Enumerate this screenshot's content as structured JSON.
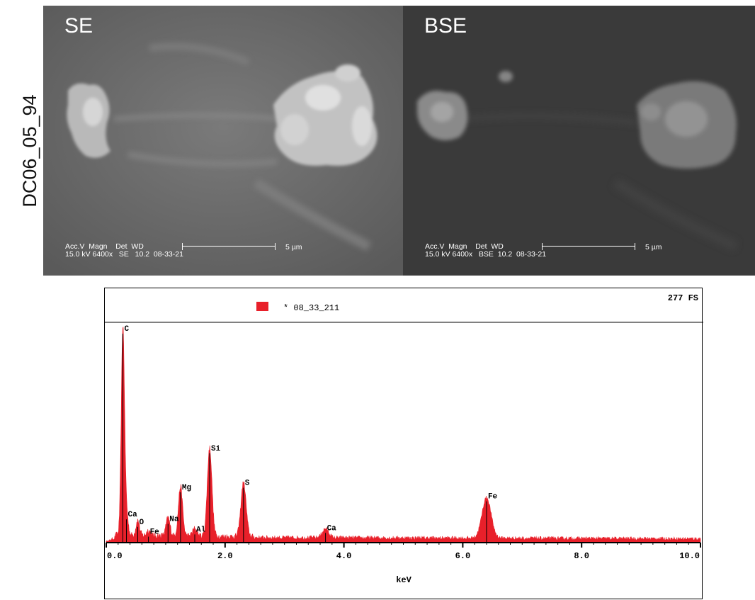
{
  "sample_id": "DC06_05_94",
  "sem_panels": [
    {
      "label": "SE",
      "meta_header": "Acc.V  Magn    Det  WD",
      "meta_values": "15.0 kV 6400x   SE   10.2  08-33-21",
      "scale_text": "5 µm"
    },
    {
      "label": "BSE",
      "meta_header": "Acc.V  Magn    Det  WD",
      "meta_values": "15.0 kV 6400x   BSE  10.2  08-33-21",
      "scale_text": "5 µm"
    }
  ],
  "colors": {
    "spectrum": "#e8202a",
    "axis": "#000000"
  },
  "chart_data": {
    "type": "area",
    "title": "",
    "full_scale_label": "277 FS",
    "legend": "* 08_33_211",
    "xlabel": "keV",
    "ylabel": "",
    "xlim": [
      0.0,
      10.0
    ],
    "ylim": [
      0,
      277
    ],
    "x_ticks": [
      "0.0",
      "2.0",
      "4.0",
      "6.0",
      "8.0",
      "10.0"
    ],
    "x_tick_values": [
      0,
      2,
      4,
      6,
      8,
      10
    ],
    "background_level": 5,
    "peaks": [
      {
        "label": "C",
        "kev": 0.28,
        "counts": 277
      },
      {
        "label": "Ca",
        "kev": 0.34,
        "counts": 30
      },
      {
        "label": "O",
        "kev": 0.53,
        "counts": 20
      },
      {
        "label": "Fe",
        "kev": 0.71,
        "counts": 7
      },
      {
        "label": "Na",
        "kev": 1.04,
        "counts": 24
      },
      {
        "label": "Mg",
        "kev": 1.25,
        "counts": 66
      },
      {
        "label": "Al",
        "kev": 1.49,
        "counts": 10
      },
      {
        "label": "Si",
        "kev": 1.74,
        "counts": 118
      },
      {
        "label": "S",
        "kev": 2.31,
        "counts": 72
      },
      {
        "label": "Ca",
        "kev": 3.69,
        "counts": 12
      },
      {
        "label": "Fe",
        "kev": 6.4,
        "counts": 54
      }
    ]
  }
}
